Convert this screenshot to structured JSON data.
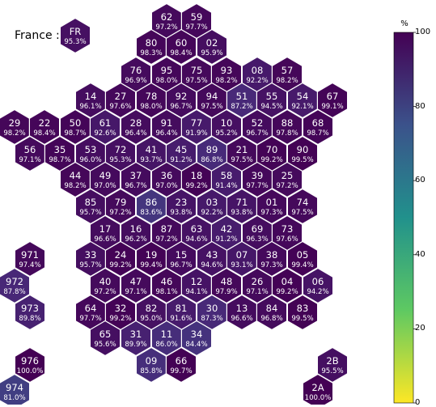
{
  "country": {
    "label": "France :",
    "code": "FR",
    "value": "95.3%"
  },
  "colorbar": {
    "unit": "%",
    "min": 0,
    "max": 100,
    "ticks": [
      "0",
      "20",
      "40",
      "60",
      "80",
      "100"
    ],
    "colormap": "viridis",
    "stops": [
      "#fde725",
      "#5ec962",
      "#21918c",
      "#3b528b",
      "#440154"
    ]
  },
  "departments": [
    {
      "code": "62",
      "value": "97.2%",
      "pct": 97.2
    },
    {
      "code": "59",
      "value": "97.7%",
      "pct": 97.7
    },
    {
      "code": "80",
      "value": "98.3%",
      "pct": 98.3
    },
    {
      "code": "60",
      "value": "98.4%",
      "pct": 98.4
    },
    {
      "code": "02",
      "value": "95.9%",
      "pct": 95.9
    },
    {
      "code": "76",
      "value": "96.9%",
      "pct": 96.9
    },
    {
      "code": "95",
      "value": "98.0%",
      "pct": 98.0
    },
    {
      "code": "75",
      "value": "97.5%",
      "pct": 97.5
    },
    {
      "code": "93",
      "value": "98.2%",
      "pct": 98.2
    },
    {
      "code": "08",
      "value": "92.2%",
      "pct": 92.2
    },
    {
      "code": "57",
      "value": "98.2%",
      "pct": 98.2
    },
    {
      "code": "14",
      "value": "96.1%",
      "pct": 96.1
    },
    {
      "code": "27",
      "value": "97.6%",
      "pct": 97.6
    },
    {
      "code": "78",
      "value": "98.0%",
      "pct": 98.0
    },
    {
      "code": "92",
      "value": "96.7%",
      "pct": 96.7
    },
    {
      "code": "94",
      "value": "97.5%",
      "pct": 97.5
    },
    {
      "code": "51",
      "value": "87.2%",
      "pct": 87.2
    },
    {
      "code": "55",
      "value": "94.5%",
      "pct": 94.5
    },
    {
      "code": "54",
      "value": "92.1%",
      "pct": 92.1
    },
    {
      "code": "67",
      "value": "99.1%",
      "pct": 99.1
    },
    {
      "code": "29",
      "value": "98.2%",
      "pct": 98.2
    },
    {
      "code": "22",
      "value": "98.4%",
      "pct": 98.4
    },
    {
      "code": "50",
      "value": "98.7%",
      "pct": 98.7
    },
    {
      "code": "61",
      "value": "92.6%",
      "pct": 92.6
    },
    {
      "code": "28",
      "value": "96.4%",
      "pct": 96.4
    },
    {
      "code": "91",
      "value": "96.4%",
      "pct": 96.4
    },
    {
      "code": "77",
      "value": "91.9%",
      "pct": 91.9
    },
    {
      "code": "10",
      "value": "95.2%",
      "pct": 95.2
    },
    {
      "code": "52",
      "value": "96.7%",
      "pct": 96.7
    },
    {
      "code": "88",
      "value": "97.8%",
      "pct": 97.8
    },
    {
      "code": "68",
      "value": "98.7%",
      "pct": 98.7
    },
    {
      "code": "56",
      "value": "97.1%",
      "pct": 97.1
    },
    {
      "code": "35",
      "value": "98.7%",
      "pct": 98.7
    },
    {
      "code": "53",
      "value": "96.0%",
      "pct": 96.0
    },
    {
      "code": "72",
      "value": "95.3%",
      "pct": 95.3
    },
    {
      "code": "41",
      "value": "93.7%",
      "pct": 93.7
    },
    {
      "code": "45",
      "value": "91.2%",
      "pct": 91.2
    },
    {
      "code": "89",
      "value": "86.8%",
      "pct": 86.8
    },
    {
      "code": "21",
      "value": "97.5%",
      "pct": 97.5
    },
    {
      "code": "70",
      "value": "99.2%",
      "pct": 99.2
    },
    {
      "code": "90",
      "value": "99.5%",
      "pct": 99.5
    },
    {
      "code": "44",
      "value": "98.2%",
      "pct": 98.2
    },
    {
      "code": "49",
      "value": "97.0%",
      "pct": 97.0
    },
    {
      "code": "37",
      "value": "96.7%",
      "pct": 96.7
    },
    {
      "code": "36",
      "value": "97.0%",
      "pct": 97.0
    },
    {
      "code": "18",
      "value": "99.2%",
      "pct": 99.2
    },
    {
      "code": "58",
      "value": "91.4%",
      "pct": 91.4
    },
    {
      "code": "39",
      "value": "97.7%",
      "pct": 97.7
    },
    {
      "code": "25",
      "value": "97.2%",
      "pct": 97.2
    },
    {
      "code": "85",
      "value": "95.7%",
      "pct": 95.7
    },
    {
      "code": "79",
      "value": "97.2%",
      "pct": 97.2
    },
    {
      "code": "86",
      "value": "83.6%",
      "pct": 83.6
    },
    {
      "code": "23",
      "value": "93.8%",
      "pct": 93.8
    },
    {
      "code": "03",
      "value": "92.2%",
      "pct": 92.2
    },
    {
      "code": "71",
      "value": "93.8%",
      "pct": 93.8
    },
    {
      "code": "01",
      "value": "97.3%",
      "pct": 97.3
    },
    {
      "code": "74",
      "value": "97.5%",
      "pct": 97.5
    },
    {
      "code": "17",
      "value": "96.6%",
      "pct": 96.6
    },
    {
      "code": "16",
      "value": "96.2%",
      "pct": 96.2
    },
    {
      "code": "87",
      "value": "97.2%",
      "pct": 97.2
    },
    {
      "code": "63",
      "value": "94.6%",
      "pct": 94.6
    },
    {
      "code": "42",
      "value": "91.2%",
      "pct": 91.2
    },
    {
      "code": "69",
      "value": "96.3%",
      "pct": 96.3
    },
    {
      "code": "73",
      "value": "97.6%",
      "pct": 97.6
    },
    {
      "code": "971",
      "value": "97.4%",
      "pct": 97.4
    },
    {
      "code": "33",
      "value": "95.7%",
      "pct": 95.7
    },
    {
      "code": "24",
      "value": "99.2%",
      "pct": 99.2
    },
    {
      "code": "19",
      "value": "99.4%",
      "pct": 99.4
    },
    {
      "code": "15",
      "value": "96.7%",
      "pct": 96.7
    },
    {
      "code": "43",
      "value": "94.6%",
      "pct": 94.6
    },
    {
      "code": "07",
      "value": "93.1%",
      "pct": 93.1
    },
    {
      "code": "38",
      "value": "97.3%",
      "pct": 97.3
    },
    {
      "code": "05",
      "value": "99.4%",
      "pct": 99.4
    },
    {
      "code": "972",
      "value": "87.8%",
      "pct": 87.8
    },
    {
      "code": "40",
      "value": "97.2%",
      "pct": 97.2
    },
    {
      "code": "47",
      "value": "97.1%",
      "pct": 97.1
    },
    {
      "code": "46",
      "value": "98.1%",
      "pct": 98.1
    },
    {
      "code": "12",
      "value": "94.1%",
      "pct": 94.1
    },
    {
      "code": "48",
      "value": "97.9%",
      "pct": 97.9
    },
    {
      "code": "26",
      "value": "97.1%",
      "pct": 97.1
    },
    {
      "code": "04",
      "value": "99.2%",
      "pct": 99.2
    },
    {
      "code": "06",
      "value": "94.2%",
      "pct": 94.2
    },
    {
      "code": "973",
      "value": "89.8%",
      "pct": 89.8
    },
    {
      "code": "64",
      "value": "97.7%",
      "pct": 97.7
    },
    {
      "code": "32",
      "value": "99.2%",
      "pct": 99.2
    },
    {
      "code": "82",
      "value": "95.0%",
      "pct": 95.0
    },
    {
      "code": "81",
      "value": "91.6%",
      "pct": 91.6
    },
    {
      "code": "30",
      "value": "87.3%",
      "pct": 87.3
    },
    {
      "code": "13",
      "value": "96.6%",
      "pct": 96.6
    },
    {
      "code": "84",
      "value": "96.8%",
      "pct": 96.8
    },
    {
      "code": "83",
      "value": "99.5%",
      "pct": 99.5
    },
    {
      "code": "65",
      "value": "95.6%",
      "pct": 95.6
    },
    {
      "code": "31",
      "value": "89.9%",
      "pct": 89.9
    },
    {
      "code": "11",
      "value": "86.0%",
      "pct": 86.0
    },
    {
      "code": "34",
      "value": "84.4%",
      "pct": 84.4
    },
    {
      "code": "976",
      "value": "100.0%",
      "pct": 100.0
    },
    {
      "code": "09",
      "value": "85.8%",
      "pct": 85.8
    },
    {
      "code": "66",
      "value": "99.7%",
      "pct": 99.7
    },
    {
      "code": "2B",
      "value": "95.5%",
      "pct": 95.5
    },
    {
      "code": "974",
      "value": "81.0%",
      "pct": 81.0
    },
    {
      "code": "2A",
      "value": "100.0%",
      "pct": 100.0
    }
  ]
}
